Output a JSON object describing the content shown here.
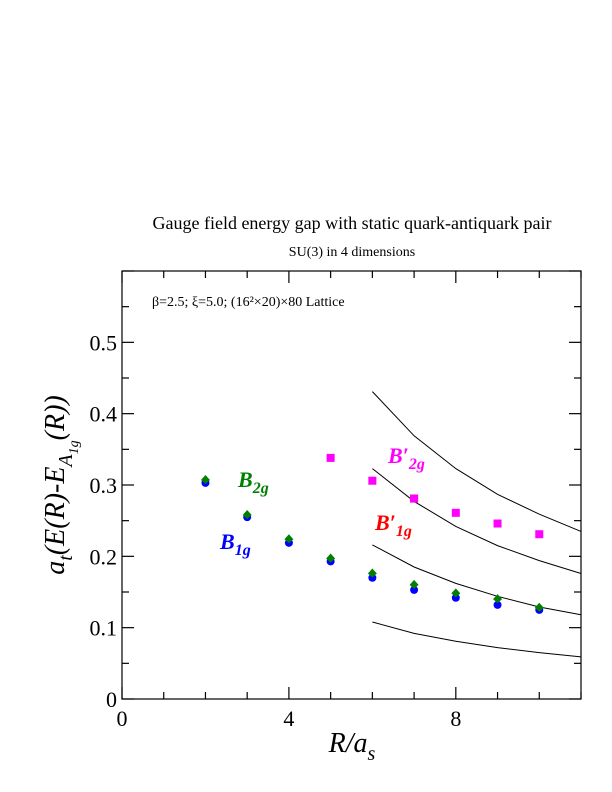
{
  "chart_data": {
    "type": "scatter",
    "title": "Gauge field energy gap with static quark-antiquark pair",
    "subtitle": "SU(3) in 4 dimensions",
    "annotation": "β=2.5;  ξ=5.0;  (16²×20)×80 Lattice",
    "xlabel": "R/a_s",
    "ylabel": "a_t(E(R)-E_A1g(R))",
    "xlim": [
      0,
      11
    ],
    "ylim": [
      0,
      0.6
    ],
    "x_ticks": [
      "0",
      "4",
      "8"
    ],
    "y_ticks": [
      "0",
      "0.1",
      "0.2",
      "0.3",
      "0.4",
      "0.5"
    ],
    "grid": false,
    "series": [
      {
        "name": "B1g",
        "label_main": "B",
        "label_sub": "1g",
        "color": "#0000ff",
        "marker": "circle",
        "x": [
          2,
          3,
          4,
          5,
          6,
          7,
          8,
          9,
          10
        ],
        "y": [
          0.305,
          0.257,
          0.221,
          0.195,
          0.172,
          0.155,
          0.144,
          0.134,
          0.127
        ]
      },
      {
        "name": "B2g",
        "label_main": "B",
        "label_sub": "2g",
        "color": "#008000",
        "marker": "diamond",
        "x": [
          2,
          3,
          4,
          5,
          6,
          7,
          8,
          9,
          10
        ],
        "y": [
          0.307,
          0.258,
          0.224,
          0.197,
          0.176,
          0.16,
          0.148,
          0.14,
          0.128
        ]
      },
      {
        "name": "B′1g",
        "label_main": "B′",
        "label_sub": "1g",
        "color": "#ff0000",
        "marker": "square",
        "x": [
          7
        ],
        "y": [
          0.281
        ]
      },
      {
        "name": "B′2g",
        "label_main": "B′",
        "label_sub": "2g",
        "color": "#ff00ff",
        "marker": "square",
        "x": [
          5,
          6,
          7,
          8,
          9,
          10
        ],
        "y": [
          0.338,
          0.306,
          0.281,
          0.261,
          0.246,
          0.231
        ]
      }
    ],
    "curves": [
      {
        "x": [
          6,
          7,
          8,
          9,
          10,
          11
        ],
        "y": [
          0.431,
          0.369,
          0.323,
          0.287,
          0.259,
          0.235
        ]
      },
      {
        "x": [
          6,
          7,
          8,
          9,
          10,
          11
        ],
        "y": [
          0.323,
          0.277,
          0.242,
          0.215,
          0.194,
          0.176
        ]
      },
      {
        "x": [
          6,
          7,
          8,
          9,
          10,
          11
        ],
        "y": [
          0.216,
          0.185,
          0.162,
          0.144,
          0.129,
          0.118
        ]
      },
      {
        "x": [
          6,
          7,
          8,
          9,
          10,
          11
        ],
        "y": [
          0.108,
          0.092,
          0.081,
          0.072,
          0.065,
          0.059
        ]
      }
    ]
  }
}
